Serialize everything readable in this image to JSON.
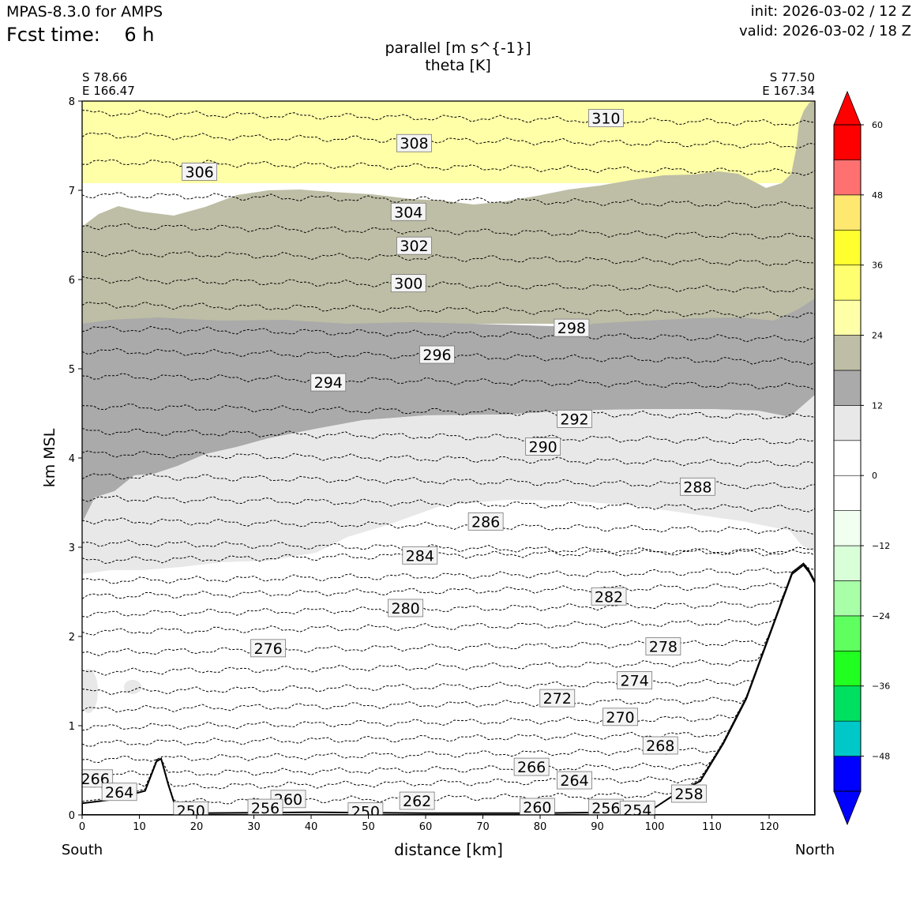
{
  "header": {
    "model": "MPAS-8.3.0 for AMPS",
    "fcst_time": "Fcst time:    6 h",
    "init": "init: 2026-03-02 / 12 Z",
    "valid": "valid: 2026-03-02 / 18 Z"
  },
  "chart_data": {
    "type": "contour",
    "title_line1": "parallel [m s^{-1}]",
    "title_line2": "theta [K]",
    "xlabel": "distance [km]",
    "ylabel": "km MSL",
    "xlim": [
      0,
      128
    ],
    "ylim": [
      0,
      8
    ],
    "x_ticks": [
      "0",
      "10",
      "20",
      "30",
      "40",
      "50",
      "60",
      "70",
      "80",
      "90",
      "100",
      "110",
      "120"
    ],
    "y_ticks": [
      "0",
      "1",
      "2",
      "3",
      "4",
      "5",
      "6",
      "7",
      "8"
    ],
    "left_endpoint": {
      "lat": "S 78.66",
      "lon": "E 166.47",
      "dir": "South"
    },
    "right_endpoint": {
      "lat": "S 77.50",
      "lon": "E 167.34",
      "dir": "North"
    },
    "colorbar": {
      "ticks": [
        "60",
        "48",
        "36",
        "24",
        "12",
        "0",
        "−12",
        "−24",
        "−36",
        "−48"
      ],
      "levels": [
        -54,
        -48,
        -42,
        -36,
        -30,
        -24,
        -18,
        -12,
        -6,
        0,
        6,
        12,
        18,
        24,
        30,
        36,
        42,
        48,
        54,
        60
      ],
      "colors": [
        "#0000ff",
        "#00c8c8",
        "#00e060",
        "#20ff20",
        "#60ff60",
        "#a8ffa8",
        "#d8ffd8",
        "#f0fff0",
        "#ffffff",
        "#ffffff",
        "#e8e8e8",
        "#aaaaaa",
        "#bebea6",
        "#ffffa8",
        "#ffff70",
        "#ffff30",
        "#ffe870",
        "#ff7070",
        "#ff0000"
      ]
    },
    "wind_shading": [
      {
        "color": "#ffffa8",
        "range": "24-30"
      },
      {
        "color": "#bebea6",
        "range": "18-24"
      },
      {
        "color": "#aaaaaa",
        "range": "12-18"
      },
      {
        "color": "#e8e8e8",
        "range": "6-12"
      }
    ],
    "terrain": [
      [
        0,
        0.13
      ],
      [
        5,
        0.17
      ],
      [
        11,
        0.27
      ],
      [
        13,
        0.6
      ],
      [
        13.8,
        0.63
      ],
      [
        15,
        0.35
      ],
      [
        16.5,
        0.05
      ],
      [
        20,
        0.02
      ],
      [
        40,
        0.03
      ],
      [
        60,
        0.02
      ],
      [
        80,
        0.02
      ],
      [
        95,
        0.03
      ],
      [
        100,
        0.08
      ],
      [
        104,
        0.25
      ],
      [
        108,
        0.38
      ],
      [
        112,
        0.8
      ],
      [
        116,
        1.3
      ],
      [
        120,
        2.0
      ],
      [
        124,
        2.7
      ],
      [
        126,
        2.8
      ],
      [
        127,
        2.72
      ],
      [
        128,
        2.6
      ]
    ],
    "theta_labels": [
      {
        "text": "310",
        "x": 91.5,
        "y": 7.8
      },
      {
        "text": "308",
        "x": 58,
        "y": 7.52
      },
      {
        "text": "306",
        "x": 20.5,
        "y": 7.2
      },
      {
        "text": "304",
        "x": 57,
        "y": 6.75
      },
      {
        "text": "302",
        "x": 58,
        "y": 6.37
      },
      {
        "text": "300",
        "x": 57,
        "y": 5.95
      },
      {
        "text": "298",
        "x": 85.5,
        "y": 5.45
      },
      {
        "text": "296",
        "x": 62,
        "y": 5.15
      },
      {
        "text": "294",
        "x": 43,
        "y": 4.84
      },
      {
        "text": "292",
        "x": 86,
        "y": 4.43
      },
      {
        "text": "290",
        "x": 80.5,
        "y": 4.12
      },
      {
        "text": "288",
        "x": 107.5,
        "y": 3.67
      },
      {
        "text": "286",
        "x": 70.5,
        "y": 3.28
      },
      {
        "text": "284",
        "x": 59,
        "y": 2.9
      },
      {
        "text": "282",
        "x": 92,
        "y": 2.44
      },
      {
        "text": "280",
        "x": 56.5,
        "y": 2.31
      },
      {
        "text": "278",
        "x": 101.5,
        "y": 1.88
      },
      {
        "text": "276",
        "x": 32.5,
        "y": 1.86
      },
      {
        "text": "274",
        "x": 96.5,
        "y": 1.5
      },
      {
        "text": "272",
        "x": 83,
        "y": 1.3
      },
      {
        "text": "270",
        "x": 94,
        "y": 1.09
      },
      {
        "text": "268",
        "x": 101,
        "y": 0.77
      },
      {
        "text": "266",
        "x": 78.5,
        "y": 0.53
      },
      {
        "text": "264",
        "x": 86,
        "y": 0.38
      },
      {
        "text": "266",
        "x": 2.3,
        "y": 0.4
      },
      {
        "text": "264",
        "x": 6.5,
        "y": 0.25
      },
      {
        "text": "258",
        "x": 106,
        "y": 0.23
      },
      {
        "text": "260",
        "x": 36,
        "y": 0.17
      },
      {
        "text": "262",
        "x": 58.5,
        "y": 0.15
      },
      {
        "text": "260",
        "x": 79.5,
        "y": 0.08
      },
      {
        "text": "256",
        "x": 91.5,
        "y": 0.07
      },
      {
        "text": "254",
        "x": 97,
        "y": 0.05
      },
      {
        "text": "256",
        "x": 32,
        "y": 0.07
      },
      {
        "text": "250",
        "x": 19,
        "y": 0.04
      },
      {
        "text": "250",
        "x": 49.5,
        "y": 0.03
      }
    ]
  }
}
